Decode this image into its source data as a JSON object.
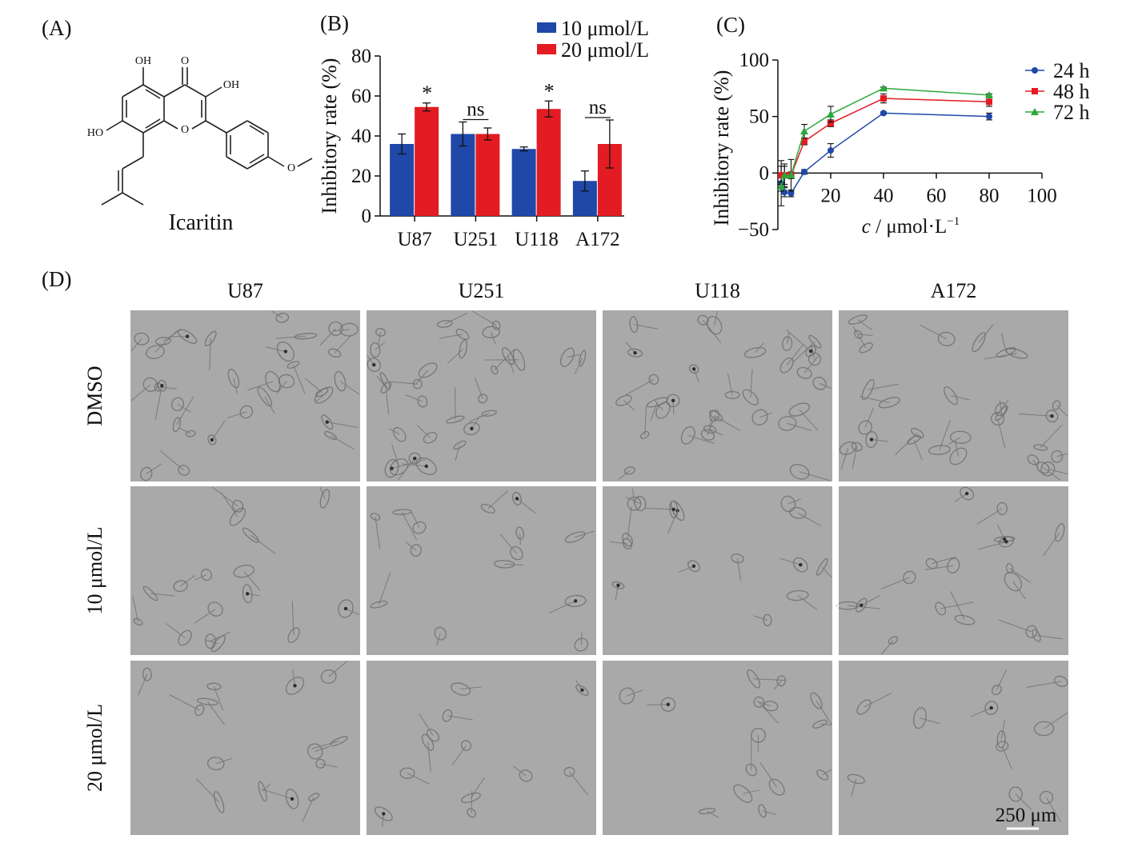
{
  "panels": {
    "a": {
      "label": "(A)",
      "compound_name": "Icaritin",
      "atoms": {
        "oh_top": "OH",
        "o_ketone": "O",
        "oh_right": "OH",
        "oh_left": "HO",
        "o_ring": "O",
        "o_methoxy": "O"
      }
    },
    "b": {
      "label": "(B)"
    },
    "c": {
      "label": "(C)"
    },
    "d": {
      "label": "(D)"
    }
  },
  "colors": {
    "blue": "#1f48a8",
    "red": "#e31c23",
    "green": "#2aa83a",
    "axis": "#111111"
  },
  "chart_data": [
    {
      "id": "b",
      "type": "bar",
      "ylabel": "Inhibitory rate (%)",
      "ylim": [
        0,
        80
      ],
      "yticks": [
        0,
        20,
        40,
        60,
        80
      ],
      "categories": [
        "U87",
        "U251",
        "U118",
        "A172"
      ],
      "series": [
        {
          "name": "10 μmol/L",
          "color": "#1f48a8",
          "values": [
            36,
            41,
            33.5,
            17.5
          ],
          "errors": [
            5,
            6,
            1,
            5
          ]
        },
        {
          "name": "20 μmol/L",
          "color": "#e31c23",
          "values": [
            54.5,
            41,
            53.5,
            36
          ],
          "errors": [
            2,
            3,
            4,
            12
          ]
        }
      ],
      "significance": [
        "*",
        "ns",
        "*",
        "ns"
      ],
      "legend_position": "top-right"
    },
    {
      "id": "c",
      "type": "line",
      "ylabel": "Inhibitory rate (%)",
      "xlabel_italic": "c",
      "xlabel_unit": " / μmol·L",
      "xlabel_sup": "−1",
      "xlim": [
        0,
        100
      ],
      "ylim": [
        -50,
        100
      ],
      "xticks": [
        "20",
        "40",
        "60",
        "80",
        "100"
      ],
      "yticks": [
        "100",
        "50",
        "0",
        "−50"
      ],
      "series": [
        {
          "name": "24 h",
          "color": "#1f48a8",
          "marker": "circle",
          "points": [
            [
              1.25,
              -9
            ],
            [
              2.5,
              -17
            ],
            [
              5,
              -18
            ],
            [
              10,
              1
            ],
            [
              20,
              20
            ],
            [
              40,
              53
            ],
            [
              80,
              50
            ]
          ],
          "errors": [
            20,
            4,
            3,
            2,
            6,
            1,
            3
          ]
        },
        {
          "name": "48 h",
          "color": "#e31c23",
          "marker": "square",
          "points": [
            [
              1.25,
              -2
            ],
            [
              2.5,
              -2
            ],
            [
              5,
              -2
            ],
            [
              10,
              28
            ],
            [
              20,
              44
            ],
            [
              40,
              66
            ],
            [
              80,
              63
            ]
          ],
          "errors": [
            8,
            10,
            3,
            3,
            3,
            4,
            4
          ]
        },
        {
          "name": "72 h",
          "color": "#2aa83a",
          "marker": "triangle",
          "points": [
            [
              1.25,
              -12
            ],
            [
              2.5,
              -2
            ],
            [
              5,
              -2
            ],
            [
              10,
              37
            ],
            [
              20,
              52
            ],
            [
              40,
              75
            ],
            [
              80,
              69
            ]
          ],
          "errors": [
            4,
            8,
            14,
            6,
            7,
            1,
            1
          ]
        }
      ],
      "legend_position": "top-right"
    }
  ],
  "micrographs": {
    "columns": [
      "U87",
      "U251",
      "U118",
      "A172"
    ],
    "rows": [
      "DMSO",
      "10 μmol/L",
      "20 μmol/L"
    ],
    "scale_bar": "250 μm"
  }
}
